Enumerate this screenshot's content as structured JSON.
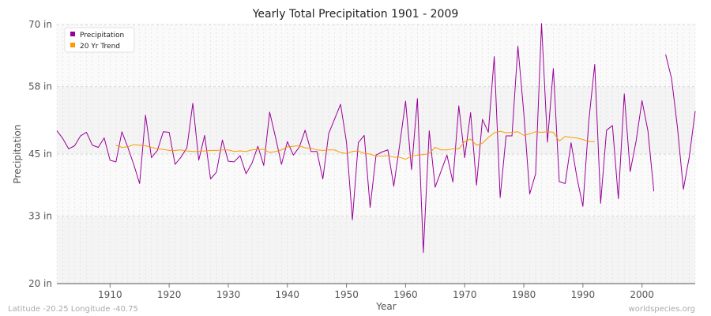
{
  "chart_data": {
    "type": "line",
    "title": "Yearly Total Precipitation 1901 - 2009",
    "xlabel": "Year",
    "ylabel": "Precipitation",
    "xlim": [
      1901,
      2009
    ],
    "ylim": [
      20,
      70
    ],
    "y_ticks": [
      20,
      33,
      45,
      58,
      70
    ],
    "y_tick_labels": [
      "20 in",
      "33 in",
      "45 in",
      "58 in",
      "70 in"
    ],
    "x_ticks": [
      1910,
      1920,
      1930,
      1940,
      1950,
      1960,
      1970,
      1980,
      1990,
      2000
    ],
    "x_tick_labels": [
      "1910",
      "1920",
      "1930",
      "1940",
      "1950",
      "1960",
      "1970",
      "1980",
      "1990",
      "2000"
    ],
    "grid": true,
    "legend_position": "top-left",
    "series": [
      {
        "name": "Precipitation",
        "color": "#990099",
        "x": [
          1901,
          1902,
          1903,
          1904,
          1905,
          1906,
          1907,
          1908,
          1909,
          1910,
          1911,
          1912,
          1913,
          1914,
          1915,
          1916,
          1917,
          1918,
          1919,
          1920,
          1921,
          1922,
          1923,
          1924,
          1925,
          1926,
          1927,
          1928,
          1929,
          1930,
          1931,
          1932,
          1933,
          1934,
          1935,
          1936,
          1937,
          1938,
          1939,
          1940,
          1941,
          1942,
          1943,
          1944,
          1945,
          1946,
          1947,
          1948,
          1949,
          1950,
          1951,
          1952,
          1953,
          1954,
          1955,
          1956,
          1957,
          1958,
          1959,
          1960,
          1961,
          1962,
          1963,
          1964,
          1965,
          1966,
          1967,
          1968,
          1969,
          1970,
          1971,
          1972,
          1973,
          1974,
          1975,
          1976,
          1977,
          1978,
          1979,
          1980,
          1981,
          1982,
          1983,
          1984,
          1985,
          1986,
          1987,
          1988,
          1989,
          1990,
          1991,
          1992,
          1993,
          1994,
          1995,
          1996,
          1997,
          1998,
          1999,
          2000,
          2001,
          2002,
          2003,
          2004,
          2005,
          2006,
          2007,
          2008,
          2009
        ],
        "values": [
          49.5,
          48,
          46,
          46.6,
          48.5,
          49.2,
          46.7,
          46.3,
          48.1,
          43.8,
          43.5,
          49.3,
          46.3,
          43,
          39.3,
          52.5,
          44.3,
          45.7,
          49.3,
          49.2,
          43,
          44.4,
          46.2,
          54.8,
          43.8,
          48.6,
          40.2,
          41.5,
          47.7,
          43.6,
          43.5,
          44.7,
          41.2,
          43.2,
          46.5,
          42.8,
          53.1,
          48.2,
          43,
          47.4,
          44.8,
          46.3,
          49.6,
          45.5,
          45.5,
          40.2,
          49,
          51.8,
          54.6,
          47.3,
          32.3,
          47.2,
          48.6,
          34.7,
          44.8,
          45.4,
          45.8,
          38.8,
          46.8,
          55.2,
          42,
          55.7,
          26,
          49.5,
          38.6,
          41.7,
          44.8,
          39.6,
          54.3,
          44.3,
          53,
          39,
          51.7,
          49.2,
          63.8,
          36.6,
          48.5,
          48.5,
          65.8,
          52.9,
          37.3,
          41.2,
          70.2,
          47.3,
          61.5,
          39.7,
          39.3,
          47.2,
          40.4,
          34.9,
          51.4,
          62.3,
          35.5,
          49.6,
          50.5,
          36.4,
          56.6,
          41.6,
          47.5,
          55.3,
          49.5,
          37.8,
          null,
          64.2,
          59.6,
          50.1,
          38.2,
          44.5,
          53.3
        ]
      },
      {
        "name": "20 Yr Trend",
        "color": "#ff9900",
        "x": [
          1911,
          1912,
          1913,
          1914,
          1915,
          1916,
          1917,
          1918,
          1919,
          1920,
          1921,
          1922,
          1923,
          1924,
          1925,
          1926,
          1927,
          1928,
          1929,
          1930,
          1931,
          1932,
          1933,
          1934,
          1935,
          1936,
          1937,
          1938,
          1939,
          1940,
          1941,
          1942,
          1943,
          1944,
          1945,
          1946,
          1947,
          1948,
          1949,
          1950,
          1951,
          1952,
          1953,
          1954,
          1955,
          1956,
          1957,
          1958,
          1959,
          1960,
          1961,
          1962,
          1963,
          1964,
          1965,
          1966,
          1967,
          1968,
          1969,
          1970,
          1971,
          1972,
          1973,
          1974,
          1975,
          1976,
          1977,
          1978,
          1979,
          1980,
          1981,
          1982,
          1983,
          1984,
          1985,
          1986,
          1987,
          1988,
          1989,
          1990,
          1991,
          1992
        ],
        "values": [
          46.7,
          46.3,
          46.4,
          46.8,
          46.7,
          46.6,
          46.3,
          46.0,
          45.9,
          45.7,
          45.7,
          45.8,
          45.6,
          45.5,
          45.5,
          45.6,
          45.7,
          45.7,
          45.8,
          45.8,
          45.5,
          45.6,
          45.5,
          45.8,
          45.9,
          45.9,
          45.3,
          45.5,
          45.8,
          46.4,
          46.5,
          46.6,
          46.2,
          46.1,
          45.8,
          45.7,
          45.8,
          45.8,
          45.3,
          45.1,
          45.5,
          45.6,
          45.1,
          45,
          44.6,
          44.6,
          44.7,
          44.4,
          44.4,
          44,
          44.6,
          44.8,
          44.9,
          45.1,
          46.3,
          45.8,
          45.8,
          46,
          46,
          47.4,
          47.9,
          46.7,
          47.1,
          48.2,
          49.1,
          49.4,
          49.1,
          49.2,
          49.3,
          48.6,
          48.9,
          49.3,
          49.2,
          49.3,
          49.2,
          47.5,
          48.4,
          48.2,
          48.1,
          47.8,
          47.4,
          47.4
        ]
      }
    ]
  },
  "footer": {
    "left": "Latitude -20.25 Longitude -40.75",
    "right": "worldspecies.org"
  }
}
